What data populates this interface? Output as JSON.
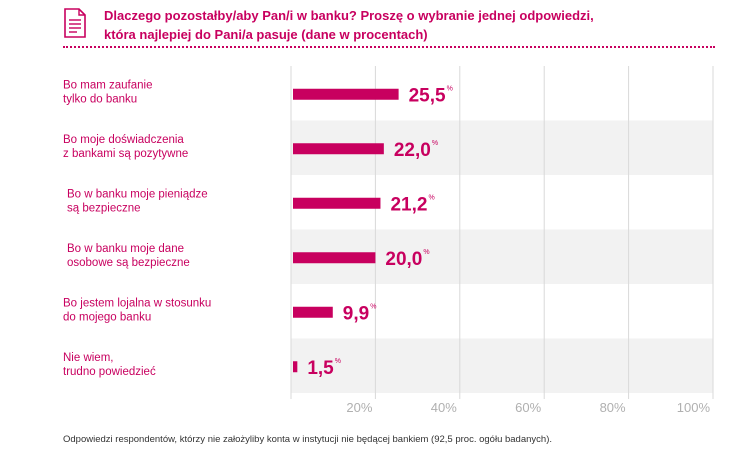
{
  "header": {
    "title_line1": "Dlaczego pozostałby/aby Pan/i w banku? Proszę o wybranie jednej odpowiedzi,",
    "title_line2": "która najlepiej do Pani/a pasuje (dane w procentach)",
    "icon": "document-icon"
  },
  "footnote": "Odpowiedzi respondentów, którzy nie założyliby konta w instytucji nie będącej bankiem (92,5 proc. ogółu badanych).",
  "colors": {
    "accent": "#c8005f",
    "band_light": "#f2f2f2",
    "grid": "#d9d9d9",
    "tick": "#b0b0b0"
  },
  "chart_data": {
    "type": "bar",
    "orientation": "horizontal",
    "categories": [
      [
        "Bo mam zaufanie",
        "tylko do banku"
      ],
      [
        "Bo moje doświadczenia",
        "z bankami są pozytywne"
      ],
      [
        "Bo w banku moje pieniądze",
        "są bezpieczne"
      ],
      [
        "Bo w banku moje dane",
        "osobowe są bezpieczne"
      ],
      [
        "Bo jestem lojalna w stosunku",
        "do mojego banku"
      ],
      [
        "Nie wiem,",
        "trudno powiedzieć"
      ]
    ],
    "values": [
      25.5,
      22.0,
      21.2,
      20.0,
      9.9,
      1.5
    ],
    "value_labels": [
      "25,5",
      "22,0",
      "21,2",
      "20,0",
      "9,9",
      "1,5"
    ],
    "value_suffix": "%",
    "xlim": [
      0,
      100
    ],
    "ticks": [
      20,
      40,
      60,
      80,
      100
    ],
    "tick_labels": [
      "20%",
      "40%",
      "60%",
      "80%",
      "100%"
    ],
    "grid": true,
    "legend": false
  }
}
